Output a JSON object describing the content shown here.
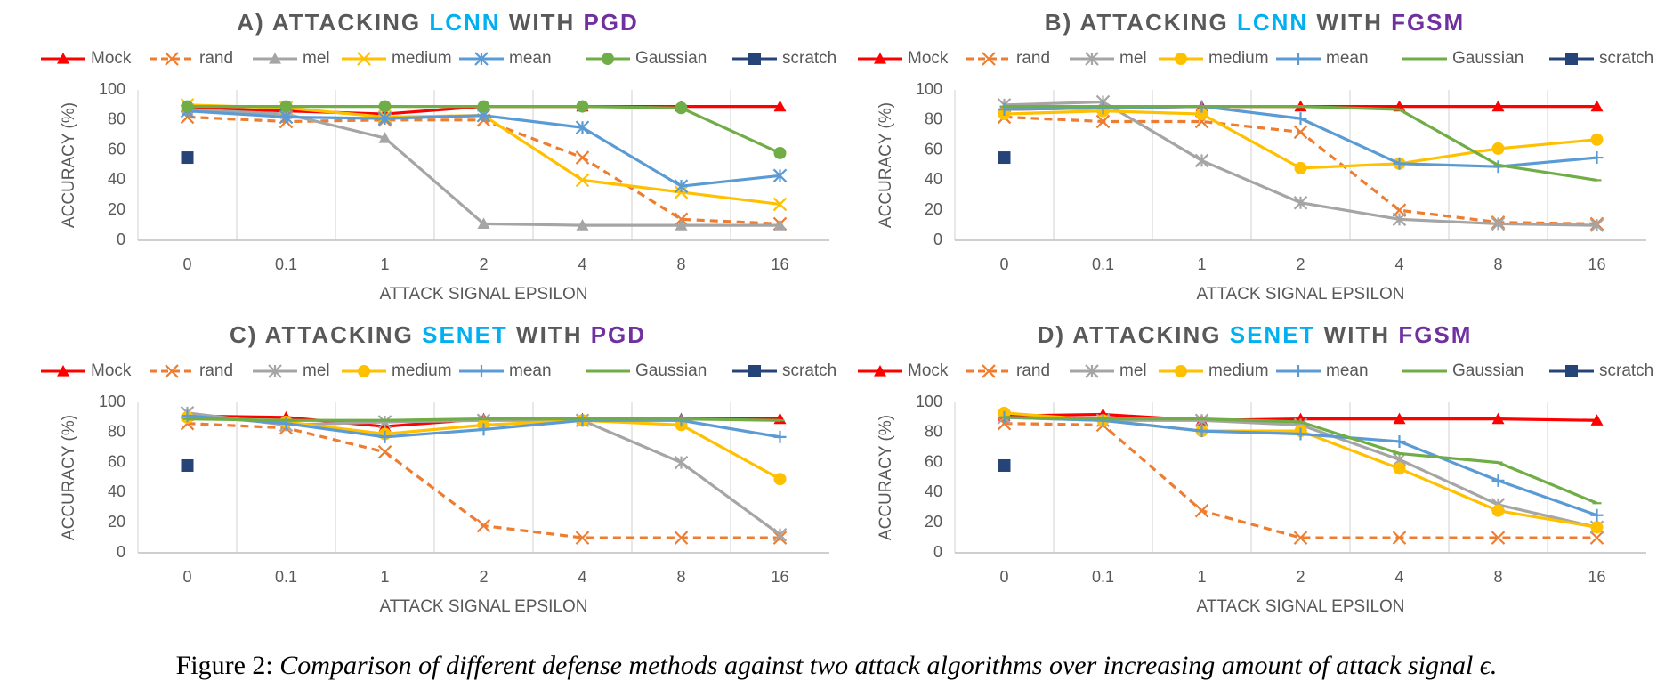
{
  "chart_data": [
    {
      "type": "line",
      "title": [
        "A) ATTACKING",
        "LCNN",
        "WITH",
        "PGD"
      ],
      "title_colors": [
        "#595959",
        "#00b0f0",
        "#595959",
        "#7030a0"
      ],
      "categories": [
        "0",
        "0.1",
        "1",
        "2",
        "4",
        "8",
        "16"
      ],
      "xlabel": "ATTACK SIGNAL EPSILON",
      "ylabel": "ACCURACY (%)",
      "ylim": [
        0,
        100
      ],
      "yticks": [
        0,
        20,
        40,
        60,
        80,
        100
      ],
      "series": [
        {
          "name": "Mock",
          "color": "#ff0000",
          "marker": "triangle",
          "values": [
            88,
            86,
            84,
            89,
            89,
            89,
            89
          ]
        },
        {
          "name": "rand",
          "color": "#ed7d31",
          "marker": "x",
          "dashed": true,
          "values": [
            82,
            79,
            80,
            80,
            55,
            14,
            11
          ]
        },
        {
          "name": "mel",
          "color": "#a5a5a5",
          "marker": "triangle",
          "values": [
            87,
            84,
            68,
            11,
            10,
            10,
            10
          ]
        },
        {
          "name": "medium",
          "color": "#ffc000",
          "marker": "x",
          "values": [
            90,
            88,
            82,
            83,
            40,
            32,
            24
          ]
        },
        {
          "name": "mean",
          "color": "#5b9bd5",
          "marker": "asterisk",
          "values": [
            86,
            82,
            81,
            83,
            75,
            36,
            43
          ]
        },
        {
          "name": "Gaussian",
          "color": "#70ad47",
          "marker": "circle",
          "values": [
            89,
            89,
            89,
            89,
            89,
            88,
            58
          ]
        },
        {
          "name": "scratch",
          "color": "#264478",
          "marker": "square",
          "values": [
            55,
            null,
            null,
            null,
            null,
            null,
            null
          ]
        }
      ]
    },
    {
      "type": "line",
      "title": [
        "B) ATTACKING",
        "LCNN",
        "WITH",
        "FGSM"
      ],
      "title_colors": [
        "#595959",
        "#00b0f0",
        "#595959",
        "#7030a0"
      ],
      "categories": [
        "0",
        "0.1",
        "1",
        "2",
        "4",
        "8",
        "16"
      ],
      "xlabel": "ATTACK SIGNAL EPSILON",
      "ylabel": "ACCURACY (%)",
      "ylim": [
        0,
        100
      ],
      "yticks": [
        0,
        20,
        40,
        60,
        80,
        100
      ],
      "series": [
        {
          "name": "Mock",
          "color": "#ff0000",
          "marker": "triangle",
          "values": [
            87,
            88,
            89,
            89,
            89,
            89,
            89
          ]
        },
        {
          "name": "rand",
          "color": "#ed7d31",
          "marker": "x",
          "dashed": true,
          "values": [
            82,
            79,
            79,
            72,
            20,
            12,
            11
          ]
        },
        {
          "name": "mel",
          "color": "#a5a5a5",
          "marker": "asterisk",
          "values": [
            90,
            92,
            53,
            25,
            14,
            11,
            10
          ]
        },
        {
          "name": "medium",
          "color": "#ffc000",
          "marker": "circle",
          "values": [
            84,
            86,
            84,
            48,
            51,
            61,
            67
          ]
        },
        {
          "name": "mean",
          "color": "#5b9bd5",
          "marker": "plus",
          "values": [
            87,
            88,
            89,
            81,
            51,
            49,
            55
          ]
        },
        {
          "name": "Gaussian",
          "color": "#70ad47",
          "marker": "dash",
          "values": [
            89,
            89,
            89,
            89,
            87,
            50,
            40
          ]
        },
        {
          "name": "scratch",
          "color": "#264478",
          "marker": "square",
          "values": [
            55,
            null,
            null,
            null,
            null,
            null,
            null
          ]
        }
      ]
    },
    {
      "type": "line",
      "title": [
        "C) ATTACKING",
        "SENET",
        "WITH",
        "PGD"
      ],
      "title_colors": [
        "#595959",
        "#00b0f0",
        "#595959",
        "#7030a0"
      ],
      "categories": [
        "0",
        "0.1",
        "1",
        "2",
        "4",
        "8",
        "16"
      ],
      "xlabel": "ATTACK SIGNAL EPSILON",
      "ylabel": "ACCURACY (%)",
      "ylim": [
        0,
        100
      ],
      "yticks": [
        0,
        20,
        40,
        60,
        80,
        100
      ],
      "series": [
        {
          "name": "Mock",
          "color": "#ff0000",
          "marker": "triangle",
          "values": [
            91,
            90,
            84,
            89,
            89,
            89,
            89
          ]
        },
        {
          "name": "rand",
          "color": "#ed7d31",
          "marker": "x",
          "dashed": true,
          "values": [
            86,
            83,
            67,
            18,
            10,
            10,
            10
          ]
        },
        {
          "name": "mel",
          "color": "#a5a5a5",
          "marker": "asterisk",
          "values": [
            93,
            85,
            87,
            88,
            88,
            60,
            12
          ]
        },
        {
          "name": "medium",
          "color": "#ffc000",
          "marker": "circle",
          "values": [
            90,
            87,
            79,
            85,
            88,
            85,
            49
          ]
        },
        {
          "name": "mean",
          "color": "#5b9bd5",
          "marker": "plus",
          "values": [
            91,
            86,
            77,
            82,
            88,
            88,
            77
          ]
        },
        {
          "name": "Gaussian",
          "color": "#70ad47",
          "marker": "dash",
          "values": [
            89,
            88,
            88,
            89,
            89,
            89,
            88
          ]
        },
        {
          "name": "scratch",
          "color": "#264478",
          "marker": "square",
          "values": [
            58,
            null,
            null,
            null,
            null,
            null,
            null
          ]
        }
      ]
    },
    {
      "type": "line",
      "title": [
        "D) ATTACKING",
        "SENET",
        "WITH",
        "FGSM"
      ],
      "title_colors": [
        "#595959",
        "#00b0f0",
        "#595959",
        "#7030a0"
      ],
      "categories": [
        "0",
        "0.1",
        "1",
        "2",
        "4",
        "8",
        "16"
      ],
      "xlabel": "ATTACK SIGNAL EPSILON",
      "ylabel": "ACCURACY (%)",
      "ylim": [
        0,
        100
      ],
      "yticks": [
        0,
        20,
        40,
        60,
        80,
        100
      ],
      "series": [
        {
          "name": "Mock",
          "color": "#ff0000",
          "marker": "triangle",
          "values": [
            91,
            92,
            88,
            89,
            89,
            89,
            88
          ]
        },
        {
          "name": "rand",
          "color": "#ed7d31",
          "marker": "x",
          "dashed": true,
          "values": [
            86,
            85,
            28,
            10,
            10,
            10,
            10
          ]
        },
        {
          "name": "mel",
          "color": "#a5a5a5",
          "marker": "asterisk",
          "values": [
            90,
            88,
            88,
            85,
            62,
            32,
            17
          ]
        },
        {
          "name": "medium",
          "color": "#ffc000",
          "marker": "circle",
          "values": [
            93,
            88,
            81,
            81,
            56,
            28,
            17
          ]
        },
        {
          "name": "mean",
          "color": "#5b9bd5",
          "marker": "plus",
          "values": [
            90,
            88,
            81,
            79,
            74,
            48,
            25
          ]
        },
        {
          "name": "Gaussian",
          "color": "#70ad47",
          "marker": "dash",
          "values": [
            90,
            89,
            89,
            87,
            66,
            60,
            33
          ]
        },
        {
          "name": "scratch",
          "color": "#264478",
          "marker": "square",
          "values": [
            58,
            null,
            null,
            null,
            null,
            null,
            null
          ]
        }
      ]
    }
  ],
  "caption": {
    "label": "Figure 2:",
    "text": "Comparison of different defense methods against two attack algorithms over increasing amount of attack signal ϵ."
  }
}
